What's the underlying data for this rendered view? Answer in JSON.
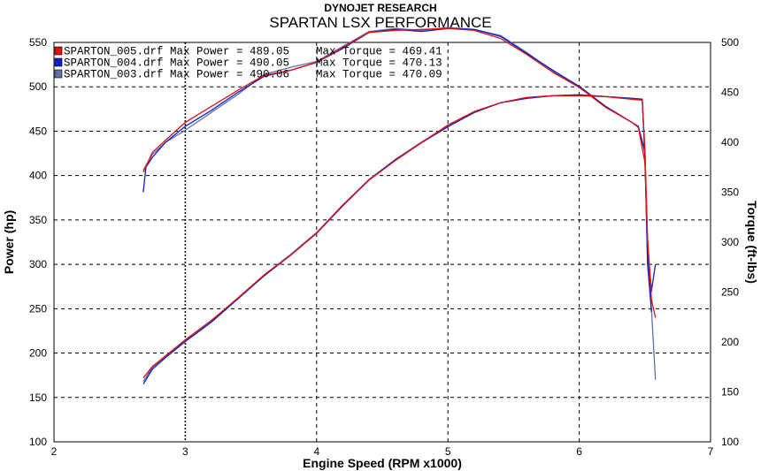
{
  "header": {
    "subtitle": "DYNOJET RESEARCH",
    "title": "SPARTAN LSX PERFORMANCE"
  },
  "chart_data": {
    "type": "line",
    "xlabel": "Engine Speed (RPM x1000)",
    "ylabel_left": "Power (hp)",
    "ylabel_right": "Torque (ft-lbs)",
    "xlim": [
      2,
      7
    ],
    "ylim_left": [
      100,
      550
    ],
    "ylim_right": [
      100,
      500
    ],
    "x_ticks": [
      2,
      3,
      4,
      5,
      6,
      7
    ],
    "y_ticks_left": [
      100,
      150,
      200,
      250,
      300,
      350,
      400,
      450,
      500,
      550
    ],
    "y_ticks_right": [
      100,
      150,
      200,
      250,
      300,
      350,
      400,
      450,
      500
    ],
    "grid": true,
    "legend_position": "top-left",
    "legend": [
      {
        "file": "SPARTON_005.drf",
        "text": "Max Power = 489.05    Max Torque = 469.41",
        "color": "#e01010"
      },
      {
        "file": "SPARTON_004.drf",
        "text": "Max Power = 490.05    Max Torque = 470.13",
        "color": "#1020c8"
      },
      {
        "file": "SPARTON_003.drf",
        "text": "Max Power = 490.06    Max Torque = 470.09",
        "color": "#6070a8"
      }
    ],
    "series": [
      {
        "name": "SPARTON_005.drf",
        "color": "#e01010",
        "power": {
          "x": [
            2.68,
            2.75,
            2.85,
            3.0,
            3.2,
            3.4,
            3.6,
            3.8,
            4.0,
            4.2,
            4.4,
            4.6,
            4.8,
            5.0,
            5.2,
            5.4,
            5.6,
            5.8,
            6.0,
            6.2,
            6.4,
            6.48,
            6.5,
            6.52,
            6.55,
            6.58
          ],
          "y": [
            172,
            185,
            197,
            215,
            237,
            262,
            288,
            310,
            335,
            367,
            395,
            417,
            437,
            457,
            472,
            482,
            488,
            490,
            490,
            489,
            486,
            485,
            430,
            330,
            260,
            240
          ]
        },
        "torque": {
          "x": [
            2.68,
            2.75,
            2.85,
            3.0,
            3.2,
            3.4,
            3.6,
            3.8,
            4.0,
            4.2,
            4.4,
            4.6,
            4.8,
            5.0,
            5.2,
            5.4,
            5.6,
            5.8,
            6.0,
            6.2,
            6.4,
            6.45,
            6.5,
            6.52,
            6.55
          ],
          "y": [
            370,
            390,
            402,
            420,
            436,
            452,
            467,
            472,
            480,
            495,
            510,
            512,
            513,
            514,
            512,
            504,
            488,
            470,
            455,
            435,
            420,
            415,
            380,
            300,
            250
          ]
        }
      },
      {
        "name": "SPARTON_004.drf",
        "color": "#1020c8",
        "power": {
          "x": [
            2.68,
            2.75,
            2.85,
            3.0,
            3.2,
            3.4,
            3.6,
            3.8,
            4.0,
            4.2,
            4.4,
            4.6,
            4.8,
            5.0,
            5.2,
            5.4,
            5.6,
            5.8,
            6.0,
            6.2,
            6.4,
            6.48,
            6.5,
            6.52,
            6.55,
            6.58
          ],
          "y": [
            165,
            182,
            195,
            213,
            235,
            261,
            287,
            310,
            335,
            366,
            395,
            418,
            437,
            455,
            471,
            482,
            487,
            490,
            491,
            489,
            487,
            486,
            420,
            320,
            270,
            300
          ]
        },
        "torque": {
          "x": [
            2.68,
            2.7,
            2.75,
            2.85,
            3.0,
            3.2,
            3.4,
            3.6,
            3.8,
            4.0,
            4.2,
            4.4,
            4.6,
            4.8,
            5.0,
            5.2,
            5.4,
            5.6,
            5.8,
            6.0,
            6.2,
            6.4,
            6.45,
            6.5,
            6.52,
            6.55
          ],
          "y": [
            350,
            375,
            385,
            400,
            416,
            432,
            450,
            466,
            472,
            480,
            494,
            510,
            513,
            511,
            514,
            513,
            506,
            489,
            472,
            456,
            436,
            420,
            416,
            390,
            280,
            230
          ]
        }
      },
      {
        "name": "SPARTON_003.drf",
        "color": "#6070a8",
        "power": {
          "x": [
            2.68,
            2.75,
            2.85,
            3.0,
            3.2,
            3.4,
            3.6,
            3.8,
            4.0,
            4.2,
            4.4,
            4.6,
            4.8,
            5.0,
            5.2,
            5.4,
            5.6,
            5.8,
            6.0,
            6.2,
            6.4,
            6.48,
            6.5,
            6.52,
            6.55,
            6.58
          ],
          "y": [
            168,
            184,
            196,
            214,
            236,
            262,
            288,
            311,
            336,
            367,
            396,
            418,
            438,
            456,
            472,
            482,
            488,
            490,
            491,
            489,
            487,
            486,
            425,
            300,
            250,
            170
          ]
        },
        "torque": {
          "x": [
            2.68,
            2.75,
            2.85,
            3.0,
            3.2,
            3.4,
            3.6,
            3.8,
            4.0,
            4.2,
            4.4,
            4.6,
            4.8,
            5.0,
            5.2,
            5.4,
            5.6,
            5.8,
            6.0,
            6.2,
            6.4,
            6.45,
            6.5,
            6.52,
            6.55
          ],
          "y": [
            372,
            388,
            400,
            412,
            430,
            448,
            468,
            475,
            481,
            496,
            511,
            514,
            512,
            515,
            513,
            507,
            490,
            471,
            455,
            436,
            420,
            415,
            392,
            290,
            240
          ]
        }
      }
    ]
  }
}
